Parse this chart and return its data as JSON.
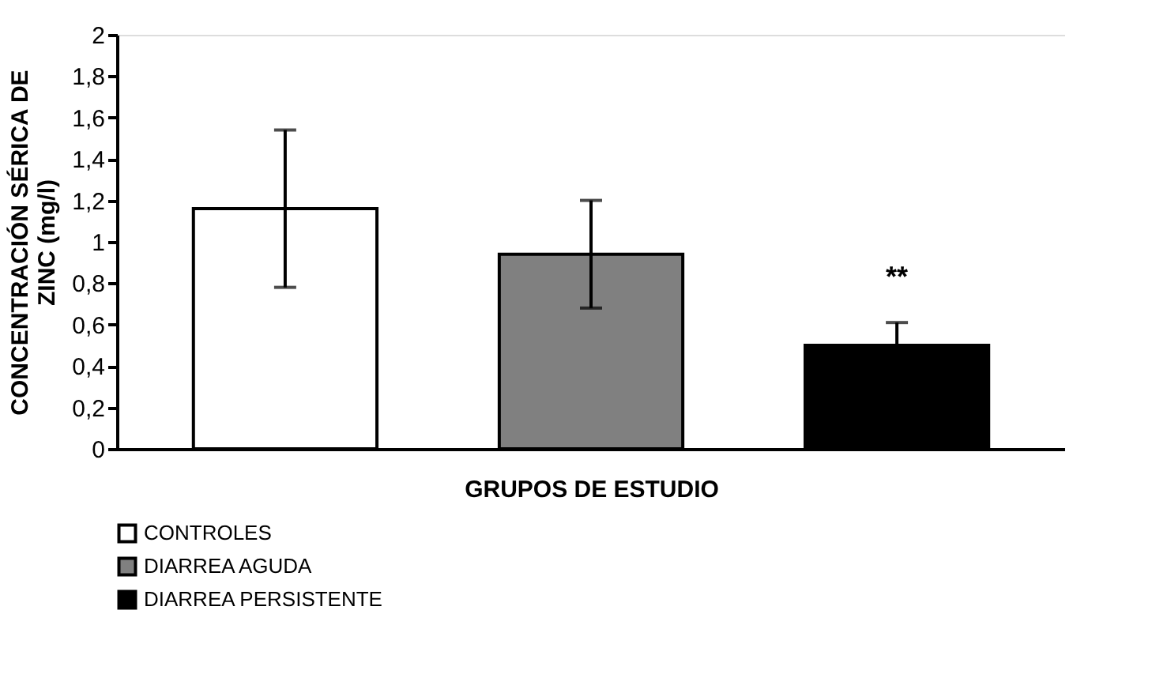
{
  "chart_data": {
    "type": "bar",
    "categories": [
      null,
      null,
      null
    ],
    "xlabel": "GRUPOS DE ESTUDIO",
    "ylabel": "CONCENTRACIÓN SÉRICA DE\nZINC (mg/l)",
    "series": [
      {
        "name": "CONTROLES",
        "color": "#ffffff",
        "values": [
          1.16,
          null,
          null
        ],
        "errors": [
          0.38,
          null,
          null
        ]
      },
      {
        "name": "DIARREA AGUDA",
        "color": "#808080",
        "values": [
          null,
          0.94,
          null
        ],
        "errors": [
          null,
          0.26,
          null
        ]
      },
      {
        "name": "DIARREA PERSISTENTE",
        "color": "#000000",
        "values": [
          null,
          null,
          0.5
        ],
        "errors": [
          null,
          null,
          0.11
        ]
      }
    ],
    "ylim": [
      0,
      2
    ],
    "yticks": [
      0,
      {
        "value": 0.2,
        "label": "0,2"
      },
      {
        "value": 0.4,
        "label": "0,4"
      },
      {
        "value": 0.6,
        "label": "0,6"
      },
      {
        "value": 0.8,
        "label": "0,8"
      },
      1,
      {
        "value": 1.2,
        "label": "1,2"
      },
      {
        "value": 1.4,
        "label": "1,4"
      },
      {
        "value": 1.6,
        "label": "1,6"
      },
      {
        "value": 1.8,
        "label": "1,8"
      },
      2
    ],
    "annotations": [
      "**"
    ],
    "legend": "bottom",
    "grid": false
  }
}
